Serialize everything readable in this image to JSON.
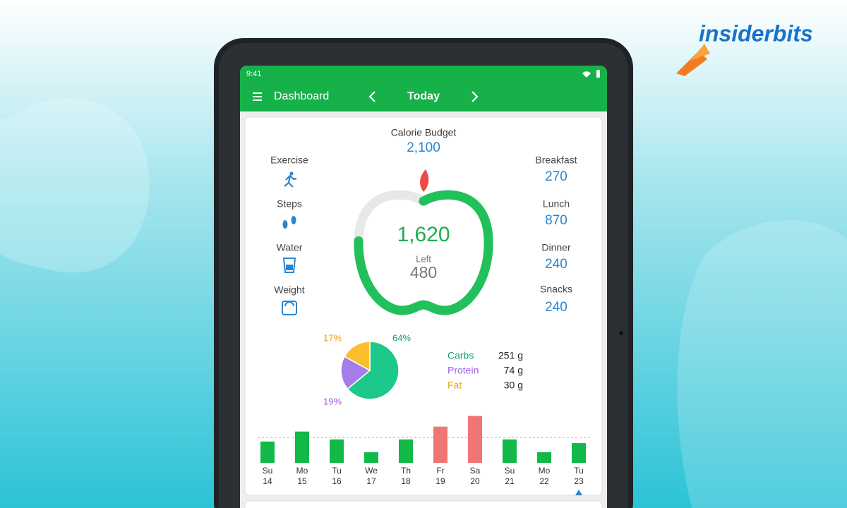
{
  "brand": "insiderbits",
  "status_bar": {
    "time": "9:41"
  },
  "app_bar": {
    "title": "Dashboard",
    "date": "Today"
  },
  "budget": {
    "label": "Calorie Budget",
    "value": "2,100"
  },
  "activities": [
    {
      "label": "Exercise"
    },
    {
      "label": "Steps"
    },
    {
      "label": "Water"
    },
    {
      "label": "Weight"
    }
  ],
  "meals": [
    {
      "label": "Breakfast",
      "value": "270"
    },
    {
      "label": "Lunch",
      "value": "870"
    },
    {
      "label": "Dinner",
      "value": "240"
    },
    {
      "label": "Snacks",
      "value": "240"
    }
  ],
  "ring": {
    "eaten": "1,620",
    "left_label": "Left",
    "left": "480"
  },
  "macros": {
    "chart_data": {
      "type": "pie",
      "values": [
        64,
        19,
        17
      ],
      "value_labels": [
        "64%",
        "19%",
        "17%"
      ],
      "colors": [
        "#1cc88a",
        "#a57ce8",
        "#fbbf2e"
      ],
      "label_colors": [
        "#1e9e6e",
        "#9b5fe0",
        "#e9a21c"
      ]
    },
    "rows": [
      {
        "name": "Carbs",
        "amount": "251 g"
      },
      {
        "name": "Protein",
        "amount": "74 g"
      },
      {
        "name": "Fat",
        "amount": "30 g"
      }
    ]
  },
  "week": {
    "chart_data": {
      "type": "bar",
      "categories": [
        "Su",
        "Mo",
        "Tu",
        "We",
        "Th",
        "Fr",
        "Sa",
        "Su",
        "Mo",
        "Tu"
      ],
      "dates": [
        "14",
        "15",
        "16",
        "17",
        "18",
        "19",
        "20",
        "21",
        "22",
        "23"
      ],
      "values": [
        1750,
        2570,
        1925,
        875,
        1925,
        2975,
        3850,
        1925,
        875,
        1620
      ],
      "colors": [
        "#12b848",
        "#12b848",
        "#12b848",
        "#12b848",
        "#12b848",
        "#f07575",
        "#f07575",
        "#12b848",
        "#12b848",
        "#12b848"
      ],
      "ylim": [
        0,
        4000
      ],
      "target": 2100
    }
  }
}
